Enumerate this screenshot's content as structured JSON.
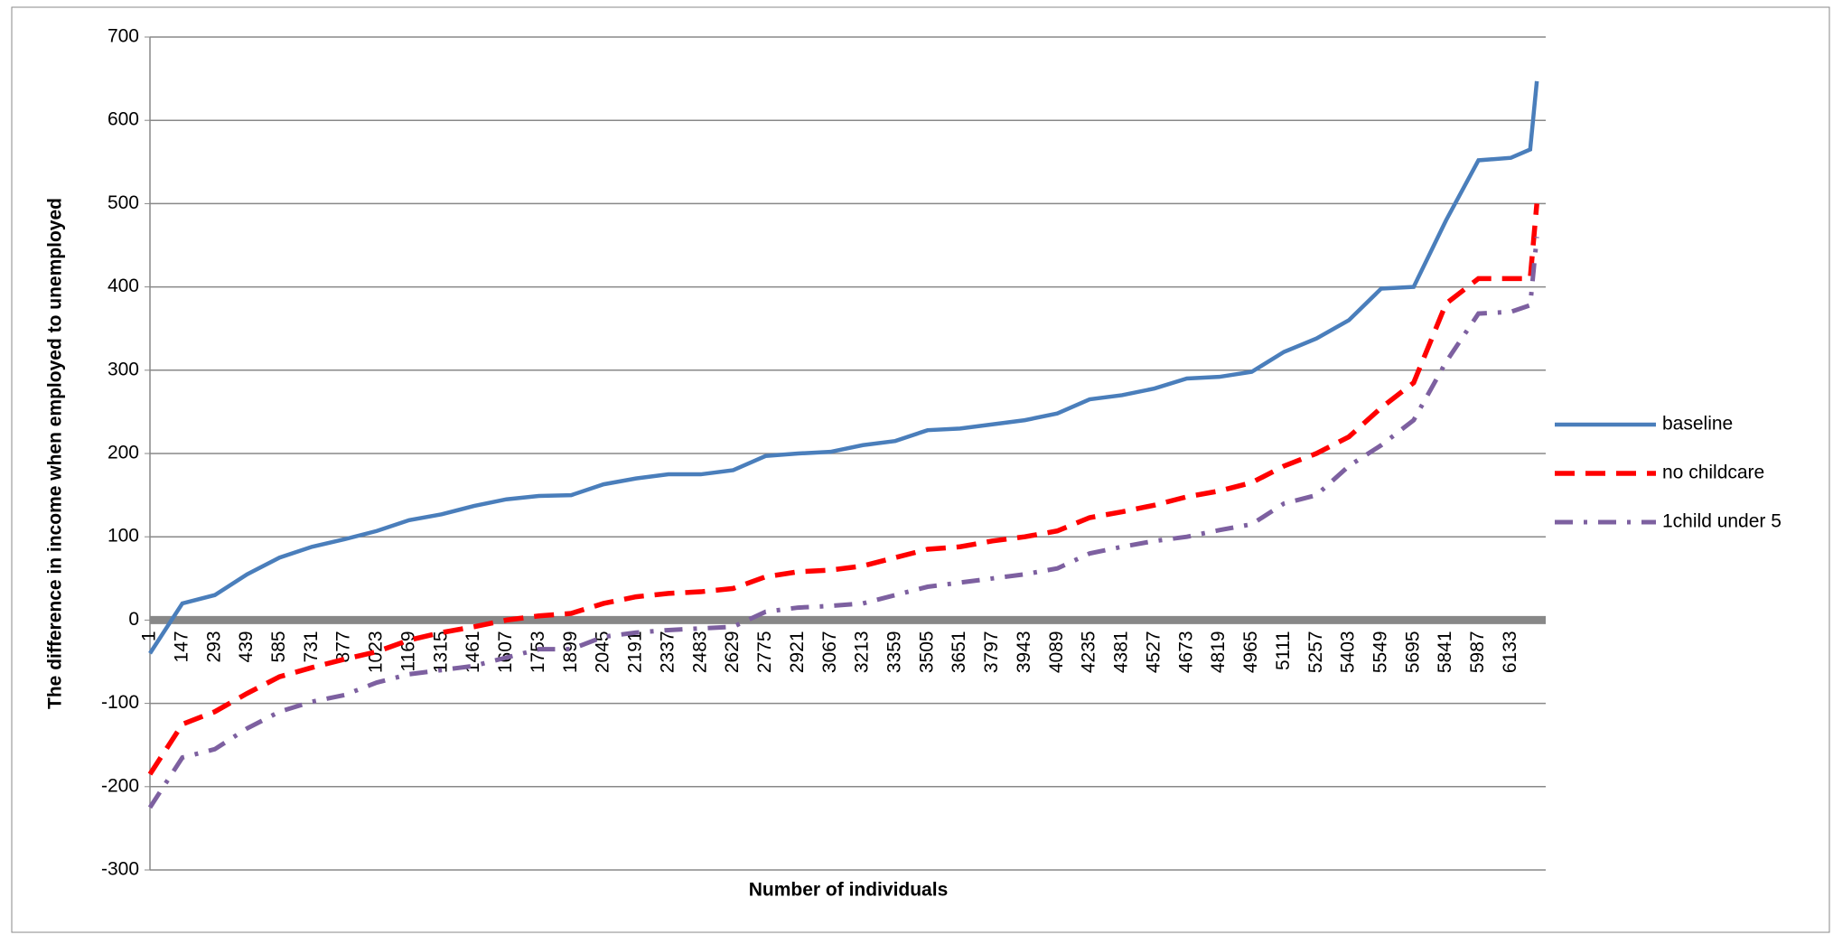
{
  "chart_data": {
    "type": "line",
    "y_label": "The difference  in income when employed to unemployed",
    "x_label": "Number of individuals",
    "x": [
      1,
      147,
      293,
      439,
      585,
      731,
      877,
      1023,
      1169,
      1315,
      1461,
      1607,
      1753,
      1899,
      2045,
      2191,
      2337,
      2483,
      2629,
      2775,
      2921,
      3067,
      3213,
      3359,
      3505,
      3651,
      3797,
      3943,
      4089,
      4235,
      4381,
      4527,
      4673,
      4819,
      4965,
      5111,
      5257,
      5403,
      5549,
      5695,
      5841,
      5987,
      6133,
      6220,
      6250
    ],
    "series": [
      {
        "name": "baseline",
        "color": "#4a7ebb",
        "values": [
          -40,
          20,
          30,
          55,
          75,
          88,
          97,
          107,
          120,
          127,
          137,
          145,
          149,
          150,
          163,
          170,
          175,
          175,
          180,
          197,
          200,
          202,
          210,
          215,
          228,
          230,
          235,
          240,
          248,
          265,
          270,
          278,
          290,
          292,
          298,
          322,
          338,
          360,
          398,
          400,
          480,
          552,
          555,
          565,
          647
        ]
      },
      {
        "name": "no childcare",
        "color": "#ff0000",
        "values": [
          -185,
          -125,
          -110,
          -88,
          -68,
          -57,
          -47,
          -38,
          -24,
          -15,
          -8,
          0,
          5,
          8,
          20,
          28,
          32,
          34,
          38,
          52,
          58,
          60,
          65,
          75,
          85,
          88,
          95,
          100,
          107,
          123,
          130,
          138,
          148,
          155,
          165,
          185,
          200,
          220,
          255,
          285,
          380,
          410,
          410,
          410,
          500
        ]
      },
      {
        "name": "1child under 5",
        "color": "#7d60a0",
        "values": [
          -225,
          -165,
          -155,
          -130,
          -110,
          -98,
          -90,
          -75,
          -65,
          -60,
          -55,
          -45,
          -35,
          -35,
          -20,
          -15,
          -12,
          -10,
          -8,
          10,
          15,
          17,
          20,
          30,
          40,
          45,
          50,
          55,
          62,
          80,
          88,
          95,
          100,
          108,
          115,
          140,
          150,
          185,
          210,
          240,
          310,
          368,
          370,
          378,
          460
        ]
      }
    ],
    "xlim": [
      1,
      6290
    ],
    "xticks": [
      1,
      147,
      293,
      439,
      585,
      731,
      877,
      1023,
      1169,
      1315,
      1461,
      1607,
      1753,
      1899,
      2045,
      2191,
      2337,
      2483,
      2629,
      2775,
      2921,
      3067,
      3213,
      3359,
      3505,
      3651,
      3797,
      3943,
      4089,
      4235,
      4381,
      4527,
      4673,
      4819,
      4965,
      5111,
      5257,
      5403,
      5549,
      5695,
      5841,
      5987,
      6133
    ],
    "ylim": [
      -300,
      700
    ],
    "yticks": [
      -300,
      -200,
      -100,
      0,
      100,
      200,
      300,
      400,
      500,
      600,
      700
    ],
    "grid": true
  }
}
